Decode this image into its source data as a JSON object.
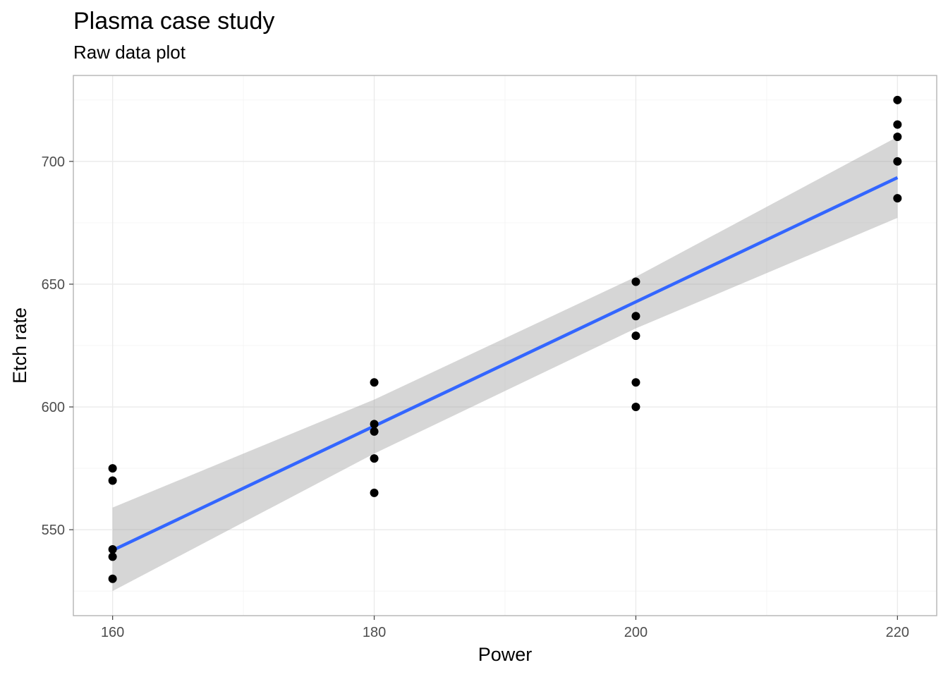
{
  "chart_data": {
    "type": "scatter",
    "title": "Plasma case study",
    "subtitle": "Raw data plot",
    "xlabel": "Power",
    "ylabel": "Etch rate",
    "xlim": [
      157,
      223
    ],
    "ylim": [
      515,
      735
    ],
    "x_ticks": [
      160,
      180,
      200,
      220
    ],
    "y_ticks": [
      550,
      600,
      650,
      700
    ],
    "grid": true,
    "legend": "none",
    "points": [
      {
        "x": 160,
        "y": 575
      },
      {
        "x": 160,
        "y": 542
      },
      {
        "x": 160,
        "y": 530
      },
      {
        "x": 160,
        "y": 539
      },
      {
        "x": 160,
        "y": 570
      },
      {
        "x": 180,
        "y": 565
      },
      {
        "x": 180,
        "y": 593
      },
      {
        "x": 180,
        "y": 590
      },
      {
        "x": 180,
        "y": 579
      },
      {
        "x": 180,
        "y": 610
      },
      {
        "x": 200,
        "y": 600
      },
      {
        "x": 200,
        "y": 651
      },
      {
        "x": 200,
        "y": 610
      },
      {
        "x": 200,
        "y": 637
      },
      {
        "x": 200,
        "y": 629
      },
      {
        "x": 220,
        "y": 725
      },
      {
        "x": 220,
        "y": 700
      },
      {
        "x": 220,
        "y": 715
      },
      {
        "x": 220,
        "y": 685
      },
      {
        "x": 220,
        "y": 710
      }
    ],
    "fit_line": {
      "method": "linear",
      "x": [
        160,
        220
      ],
      "y": [
        541.6,
        693.4
      ],
      "ci_x": [
        160,
        180,
        200,
        220
      ],
      "ci_lower": [
        525,
        581,
        632,
        677
      ],
      "ci_upper": [
        559,
        603,
        653,
        710
      ]
    },
    "colors": {
      "points": "#000000",
      "fit_line": "#3366ff",
      "ribbon": "#999999"
    }
  }
}
